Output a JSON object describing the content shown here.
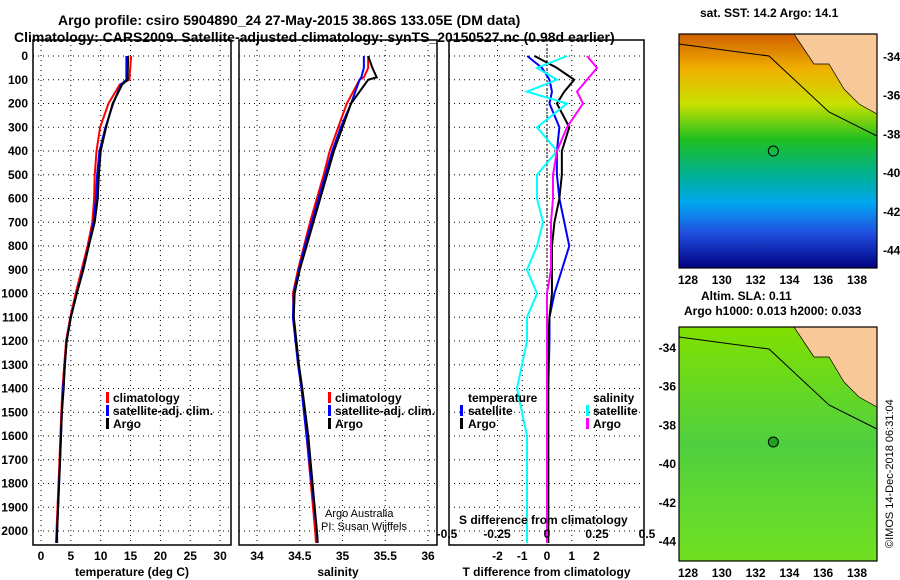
{
  "title_line1": "Argo profile: csiro 5904890_24 27-May-2015 38.86S 133.05E (DM data)",
  "title_line2": "Climatology: CARS2009. Satellite-adjusted climatology: synTS_20150527.nc (0.98d earlier)",
  "credit": "Argo Australia",
  "pi": "PI: Susan Wijffels",
  "stamp": "©IMOS 14-Dec-2018 06:31:04",
  "colors": {
    "climatology": "#ff0000",
    "satellite": "#0000ff",
    "argo": "#000000",
    "sal_satellite": "#00ffff",
    "sal_argo": "#ff00ff"
  },
  "chart_data": [
    {
      "type": "line",
      "xlabel": "temperature (deg C)",
      "xlim": [
        -1,
        31
      ],
      "ylim": [
        2060,
        -80
      ],
      "xticks": [
        "0",
        "5",
        "10",
        "15",
        "20",
        "25",
        "30"
      ],
      "yticks": [
        "0",
        "100",
        "200",
        "300",
        "400",
        "500",
        "600",
        "700",
        "800",
        "900",
        "1000",
        "1100",
        "1200",
        "1300",
        "1400",
        "1500",
        "1600",
        "1700",
        "1800",
        "1900",
        "2000"
      ],
      "legend": [
        "climatology",
        "satellite-adj. clim.",
        "Argo"
      ],
      "depth": [
        0,
        100,
        120,
        200,
        300,
        400,
        500,
        600,
        700,
        800,
        900,
        1000,
        1100,
        1200,
        1300,
        1400,
        1500,
        1700,
        2000,
        2050
      ],
      "series": [
        {
          "name": "climatology",
          "values": [
            15.1,
            14.8,
            13.2,
            11.3,
            9.9,
            9.3,
            9.0,
            8.9,
            8.6,
            7.8,
            6.8,
            5.8,
            4.9,
            4.2,
            3.9,
            3.6,
            3.4,
            3.1,
            2.6,
            2.5
          ]
        },
        {
          "name": "satellite-adj. clim.",
          "values": [
            14.3,
            14.3,
            13.4,
            12.1,
            10.8,
            9.8,
            9.4,
            9.2,
            8.8,
            8.0,
            7.0,
            6.0,
            5.0,
            4.3,
            4.0,
            3.7,
            3.5,
            3.2,
            2.7,
            2.6
          ]
        },
        {
          "name": "Argo",
          "values": [
            14.6,
            14.5,
            13.6,
            12.0,
            10.9,
            10.0,
            9.7,
            9.5,
            9.0,
            8.0,
            7.1,
            6.0,
            5.0,
            4.3,
            4.0,
            3.8,
            3.5,
            3.2,
            2.7,
            2.7
          ]
        }
      ]
    },
    {
      "type": "line",
      "xlabel": "salinity",
      "xlim": [
        33.75,
        36.2
      ],
      "ylim": [
        2060,
        -80
      ],
      "xticks": [
        "34",
        "34.5",
        "35",
        "35.5",
        "36"
      ],
      "legend": [
        "climatology",
        "satellite-adj. clim.",
        "Argo"
      ],
      "depth": [
        0,
        50,
        90,
        100,
        200,
        300,
        400,
        500,
        600,
        700,
        800,
        900,
        1000,
        1100,
        1200,
        1300,
        1400,
        1600,
        1800,
        2000,
        2050
      ],
      "series": [
        {
          "name": "climatology",
          "values": [
            35.3,
            35.3,
            35.25,
            35.2,
            35.05,
            34.95,
            34.85,
            34.78,
            34.7,
            34.62,
            34.55,
            34.48,
            34.42,
            34.43,
            34.46,
            34.49,
            34.52,
            34.58,
            34.63,
            34.68,
            34.69
          ]
        },
        {
          "name": "satellite-adj. clim.",
          "values": [
            35.25,
            35.25,
            35.22,
            35.2,
            35.1,
            34.98,
            34.88,
            34.8,
            34.72,
            34.64,
            34.56,
            34.49,
            34.43,
            34.42,
            34.45,
            34.48,
            34.52,
            34.58,
            34.64,
            34.7,
            34.71
          ]
        },
        {
          "name": "Argo",
          "values": [
            35.3,
            35.35,
            35.4,
            35.3,
            35.1,
            35.0,
            34.9,
            34.82,
            34.74,
            34.66,
            34.58,
            34.5,
            34.44,
            34.43,
            34.46,
            34.49,
            34.53,
            34.6,
            34.65,
            34.7,
            34.71
          ]
        }
      ]
    },
    {
      "type": "line",
      "xlabel": "T difference from climatology",
      "x2label": "S difference from climatology",
      "xlim": [
        -3,
        3
      ],
      "ylim": [
        2060,
        -80
      ],
      "xticks": [
        "-2",
        "-1",
        "0",
        "1",
        "2"
      ],
      "x2ticks": [
        "-0.5",
        "-0.25",
        "0",
        "0.25",
        "0.5"
      ],
      "legend_temperature": {
        "title": "temperature",
        "items": [
          "satellite",
          "Argo"
        ]
      },
      "legend_salinity": {
        "title": "salinity",
        "items": [
          "satellite",
          "Argo"
        ]
      },
      "depth": [
        0,
        50,
        100,
        150,
        200,
        300,
        400,
        500,
        600,
        700,
        800,
        900,
        1000,
        1100,
        1200,
        1400,
        1600,
        1800,
        2000,
        2050
      ],
      "series": [
        {
          "name": "T satellite",
          "values": [
            -0.8,
            -0.2,
            0.1,
            0.2,
            0.1,
            0.5,
            0.4,
            0.4,
            0.5,
            0.7,
            0.9,
            0.6,
            0.3,
            0.1,
            0.1,
            0.05,
            0.05,
            0.05,
            0.05,
            0.05
          ]
        },
        {
          "name": "T Argo",
          "values": [
            -0.5,
            0.4,
            1.1,
            0.7,
            0.4,
            0.9,
            0.6,
            0.6,
            0.5,
            0.3,
            0.2,
            0.2,
            0.2,
            0.1,
            0.05,
            0.05,
            0.05,
            0.05,
            0.05,
            0.05
          ]
        },
        {
          "name": "S satellite",
          "values": [
            0.1,
            -0.05,
            0.05,
            -0.1,
            0.1,
            -0.05,
            0.05,
            -0.05,
            -0.05,
            -0.02,
            -0.05,
            -0.1,
            -0.05,
            -0.1,
            -0.1,
            -0.15,
            -0.1,
            -0.1,
            -0.1,
            -0.1
          ]
        },
        {
          "name": "S Argo",
          "values": [
            0.2,
            0.25,
            0.2,
            0.15,
            0.18,
            0.1,
            0.05,
            0.03,
            0.03,
            0.02,
            0.02,
            0.02,
            0.0,
            0.0,
            0.0,
            0.0,
            0.0,
            0.0,
            0.0,
            0.0
          ]
        }
      ]
    },
    {
      "type": "heatmap",
      "title": "sat. SST: 14.2 Argo: 14.1",
      "xticks": [
        "128",
        "130",
        "132",
        "134",
        "136",
        "138"
      ],
      "yticks": [
        "-34",
        "-36",
        "-38",
        "-40",
        "-42",
        "-44"
      ],
      "marker": {
        "lon": 133.05,
        "lat": -38.86
      }
    },
    {
      "type": "heatmap",
      "title1": "Altim. SLA: 0.11",
      "title2": "Argo h1000: 0.013 h2000: 0.033",
      "xticks": [
        "128",
        "130",
        "132",
        "134",
        "136",
        "138"
      ],
      "yticks": [
        "-34",
        "-36",
        "-38",
        "-40",
        "-42",
        "-44"
      ],
      "marker": {
        "lon": 133.05,
        "lat": -38.86
      }
    }
  ]
}
